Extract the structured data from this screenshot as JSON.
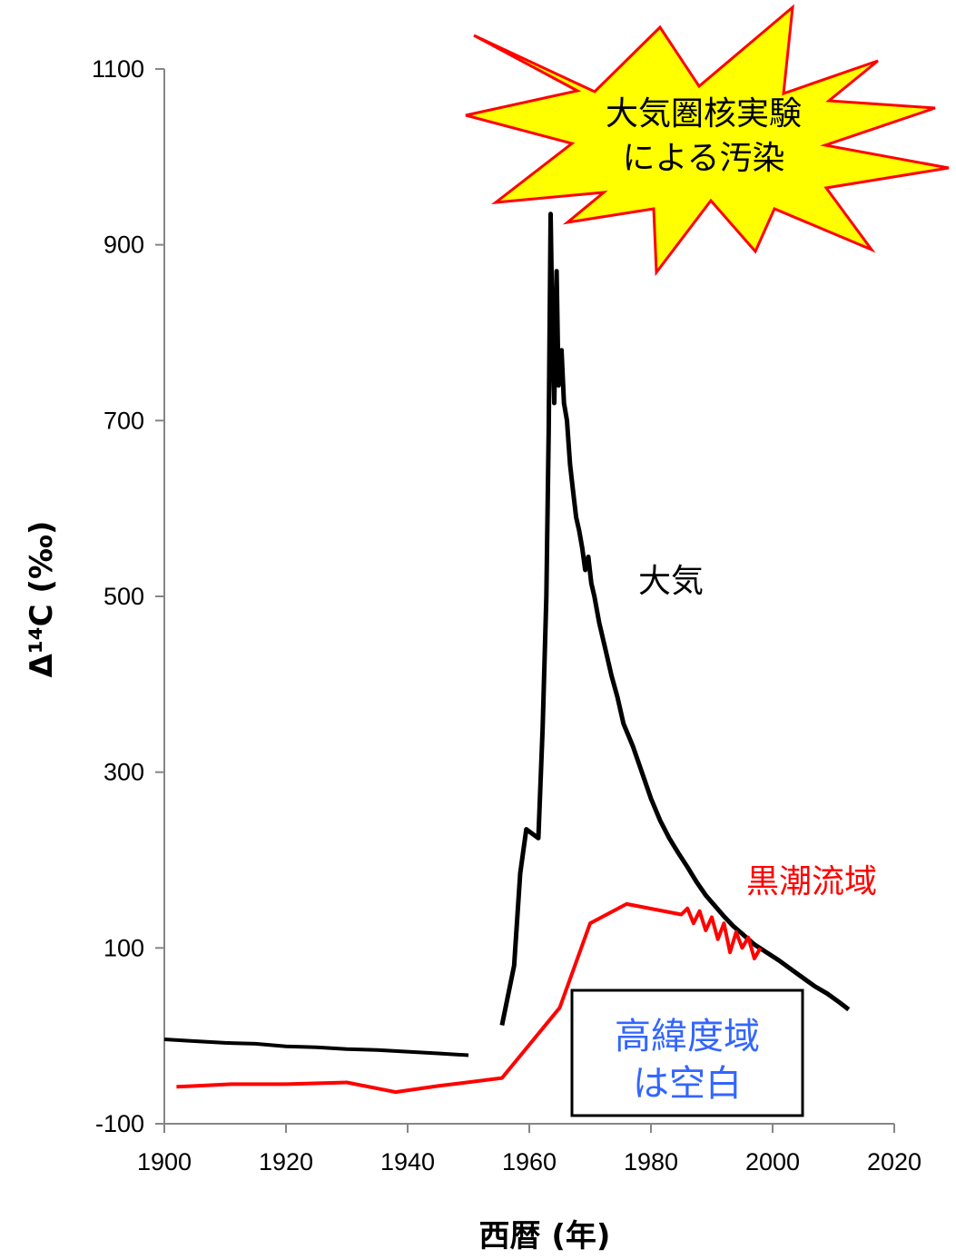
{
  "chart_data": {
    "type": "line",
    "xlabel": "西暦 (年)",
    "ylabel": "Δ¹⁴C (‰)",
    "xlim": [
      1900,
      2020
    ],
    "ylim": [
      -100,
      1100
    ],
    "x_ticks": [
      "1900",
      "1920",
      "1940",
      "1960",
      "1980",
      "2000",
      "2020"
    ],
    "y_ticks": [
      "-100",
      "100",
      "300",
      "500",
      "700",
      "900",
      "1100"
    ],
    "grid": false,
    "series": [
      {
        "name": "大気",
        "color": "#000000",
        "segments": [
          [
            [
              1900,
              -4
            ],
            [
              1905,
              -6
            ],
            [
              1910,
              -8
            ],
            [
              1915,
              -9
            ],
            [
              1920,
              -12
            ],
            [
              1925,
              -13
            ],
            [
              1930,
              -15
            ],
            [
              1935,
              -16
            ],
            [
              1940,
              -18
            ],
            [
              1945,
              -20
            ],
            [
              1950,
              -22
            ]
          ],
          [
            [
              1955.5,
              12
            ],
            [
              1957.5,
              80
            ],
            [
              1958.5,
              185
            ],
            [
              1959.5,
              235
            ],
            [
              1960.5,
              230
            ],
            [
              1961.5,
              225
            ],
            [
              1962.2,
              350
            ],
            [
              1962.8,
              500
            ],
            [
              1963.2,
              690
            ],
            [
              1963.5,
              935
            ],
            [
              1963.8,
              800
            ],
            [
              1964.1,
              720
            ],
            [
              1964.5,
              870
            ],
            [
              1964.8,
              740
            ],
            [
              1965.3,
              780
            ],
            [
              1965.7,
              720
            ],
            [
              1966.2,
              700
            ],
            [
              1966.7,
              650
            ],
            [
              1967.2,
              620
            ],
            [
              1967.7,
              590
            ],
            [
              1968.2,
              575
            ],
            [
              1968.7,
              555
            ],
            [
              1969.2,
              530
            ],
            [
              1969.7,
              545
            ],
            [
              1970.2,
              515
            ],
            [
              1970.7,
              500
            ],
            [
              1971.5,
              470
            ],
            [
              1972.5,
              440
            ],
            [
              1973.5,
              410
            ],
            [
              1974.5,
              385
            ],
            [
              1975.5,
              355
            ],
            [
              1977,
              330
            ],
            [
              1978.5,
              300
            ],
            [
              1980,
              270
            ],
            [
              1981.5,
              245
            ],
            [
              1983,
              225
            ],
            [
              1984.5,
              208
            ],
            [
              1986,
              192
            ],
            [
              1987.5,
              175
            ],
            [
              1989,
              160
            ],
            [
              1990.5,
              148
            ],
            [
              1992,
              136
            ],
            [
              1993.5,
              125
            ],
            [
              1995,
              116
            ],
            [
              1997,
              104
            ],
            [
              1999,
              95
            ],
            [
              2001,
              86
            ],
            [
              2003,
              76
            ],
            [
              2005,
              66
            ],
            [
              2007,
              56
            ],
            [
              2009,
              48
            ],
            [
              2011,
              38
            ],
            [
              2012.5,
              30
            ]
          ]
        ]
      },
      {
        "name": "黒潮流域",
        "color": "#ff0000",
        "segments": [
          [
            [
              1902,
              -58
            ],
            [
              1905,
              -57
            ],
            [
              1911,
              -55
            ],
            [
              1920,
              -55
            ],
            [
              1930,
              -53
            ],
            [
              1938,
              -64
            ],
            [
              1945,
              -57
            ],
            [
              1955.5,
              -48
            ],
            [
              1965,
              32
            ],
            [
              1970,
              128
            ],
            [
              1976,
              150
            ],
            [
              1985,
              138
            ],
            [
              1986,
              145
            ],
            [
              1987,
              128
            ],
            [
              1988,
              142
            ],
            [
              1989,
              120
            ],
            [
              1990,
              135
            ],
            [
              1991,
              110
            ],
            [
              1992,
              128
            ],
            [
              1993,
              95
            ],
            [
              1994,
              118
            ],
            [
              1995,
              100
            ],
            [
              1996,
              112
            ],
            [
              1997,
              88
            ],
            [
              1998,
              100
            ]
          ]
        ]
      }
    ]
  },
  "annotations": {
    "burst_line1": "大気圏核実験",
    "burst_line2": "による汚染",
    "atmosphere_label": "大気",
    "kuroshio_label": "黒潮流域",
    "box_line1": "高緯度域",
    "box_line2": "は空白"
  },
  "colors": {
    "burst_fill": "#ffff00",
    "burst_stroke": "#ff0000",
    "kuroshio": "#ff0000",
    "box_text": "#3366ff"
  }
}
